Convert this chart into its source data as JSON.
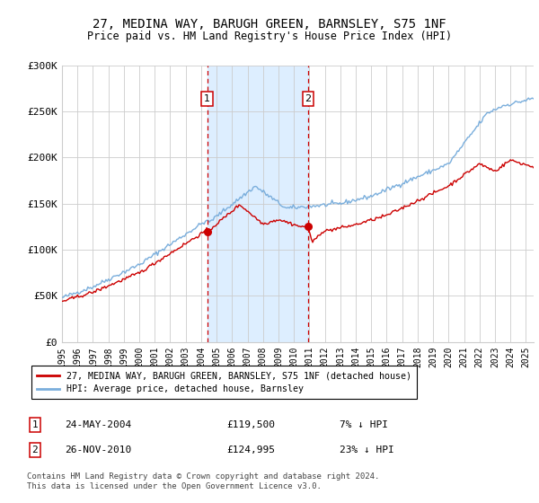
{
  "title": "27, MEDINA WAY, BARUGH GREEN, BARNSLEY, S75 1NF",
  "subtitle": "Price paid vs. HM Land Registry's House Price Index (HPI)",
  "ylim": [
    0,
    300000
  ],
  "xlim_start": 1995.0,
  "xlim_end": 2025.5,
  "yticks": [
    0,
    50000,
    100000,
    150000,
    200000,
    250000,
    300000
  ],
  "ytick_labels": [
    "£0",
    "£50K",
    "£100K",
    "£150K",
    "£200K",
    "£250K",
    "£300K"
  ],
  "xticks": [
    1995,
    1996,
    1997,
    1998,
    1999,
    2000,
    2001,
    2002,
    2003,
    2004,
    2005,
    2006,
    2007,
    2008,
    2009,
    2010,
    2011,
    2012,
    2013,
    2014,
    2015,
    2016,
    2017,
    2018,
    2019,
    2020,
    2021,
    2022,
    2023,
    2024,
    2025
  ],
  "transaction1_x": 2004.39,
  "transaction1_y": 119500,
  "transaction2_x": 2010.91,
  "transaction2_y": 124995,
  "legend_line1": "27, MEDINA WAY, BARUGH GREEN, BARNSLEY, S75 1NF (detached house)",
  "legend_line2": "HPI: Average price, detached house, Barnsley",
  "red_color": "#cc0000",
  "blue_color": "#7aaedc",
  "shade_color": "#ddeeff",
  "footnote": "Contains HM Land Registry data © Crown copyright and database right 2024.\nThis data is licensed under the Open Government Licence v3.0.",
  "background_color": "#ffffff",
  "grid_color": "#cccccc",
  "row1_date": "24-MAY-2004",
  "row1_price": "£119,500",
  "row1_hpi": "7% ↓ HPI",
  "row2_date": "26-NOV-2010",
  "row2_price": "£124,995",
  "row2_hpi": "23% ↓ HPI"
}
